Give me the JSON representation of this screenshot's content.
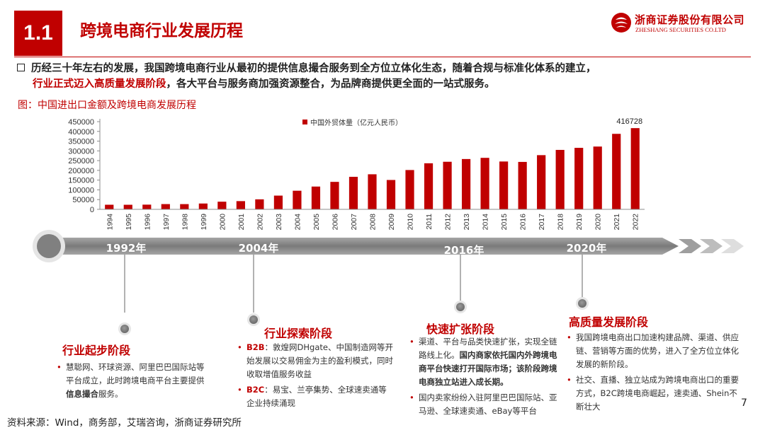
{
  "header": {
    "section_number": "1.1",
    "title": "跨境电商行业发展历程",
    "logo_cn": "浙商证券股份有限公司",
    "logo_en": "ZHESHANG SECURITIES CO.LTD"
  },
  "summary": {
    "line1": "历经三十年左右的发展，我国跨境电商行业从最初的提供信息撮合服务到全方位立体化生态，随着合规与标准化体系的建立，",
    "line2_highlight": "行业正式迈入高质量发展阶段",
    "line2_rest": "，各大平台与服务商加强资源整合，为品牌商提供更全面的一站式服务。"
  },
  "figure_caption": "图：中国进出口金额及跨境电商发展历程",
  "chart_data": {
    "type": "bar",
    "title": "",
    "series_name": "中国外贸体量（亿元人民币）",
    "categories": [
      "1994",
      "1995",
      "1996",
      "1997",
      "1998",
      "1999",
      "2000",
      "2001",
      "2002",
      "2003",
      "2004",
      "2005",
      "2006",
      "2007",
      "2008",
      "2009",
      "2010",
      "2011",
      "2012",
      "2013",
      "2014",
      "2015",
      "2016",
      "2017",
      "2018",
      "2019",
      "2020",
      "2021",
      "2022"
    ],
    "values": [
      23622,
      23500,
      24134,
      26967,
      26850,
      29896,
      39273,
      42184,
      51378,
      70484,
      95539,
      116922,
      140975,
      166924,
      179921,
      150648,
      201722,
      236402,
      244160,
      258169,
      264242,
      245503,
      243386,
      278099,
      305008,
      315627,
      322215,
      387392,
      416728
    ],
    "data_labels": [
      {
        "category": "2022",
        "text": "416728"
      }
    ],
    "yticks": [
      "0",
      "50000",
      "100000",
      "150000",
      "200000",
      "250000",
      "300000",
      "350000",
      "400000",
      "450000"
    ],
    "ylim": [
      0,
      450000
    ],
    "grid": false,
    "legend": "top-center",
    "bar_color": "#c00000"
  },
  "timeline": {
    "milestones": [
      "1992年",
      "2004年",
      "2016年",
      "2020年"
    ]
  },
  "stages": [
    {
      "title": "行业起步阶段",
      "items": [
        [
          {
            "t": "慧聪网、环球资源、阿里巴巴国际站等平台成立，此时跨境电商平台主要提供"
          },
          {
            "t": "信息撮合",
            "s": "strong"
          },
          {
            "t": "服务。"
          }
        ]
      ]
    },
    {
      "title": "行业探索阶段",
      "items": [
        [
          {
            "t": "B2B",
            "s": "strong-red"
          },
          {
            "t": "：敦煌网DHgate、中国制造网等开始发展以交易佣金为主的盈利模式，同时收取增值服务收益"
          }
        ],
        [
          {
            "t": "B2C",
            "s": "strong-red"
          },
          {
            "t": "：易宝、兰亭集势、全球速卖通等企业持续涌现"
          }
        ]
      ]
    },
    {
      "title": "快速扩张阶段",
      "items": [
        [
          {
            "t": "渠道、平台与品类快速扩张，实现全链路线上化。"
          },
          {
            "t": "国内商家依托国内外跨境电商平台快速打开国际市场；该阶段跨境电商独立站进入成长期。",
            "s": "strong"
          }
        ],
        [
          {
            "t": "国内卖家纷纷入驻阿里巴巴国际站、亚马逊、全球速卖通、eBay等平台"
          }
        ]
      ]
    },
    {
      "title": "高质量发展阶段",
      "items": [
        [
          {
            "t": "我国跨境电商出口加速构建品牌、渠道、供应链、营销等方面的优势，进入了全方位立体化发展的新阶段。"
          }
        ],
        [
          {
            "t": "社交、直播、独立站成为跨境电商出口的重要方式，B2C跨境电商崛起，速卖通、Shein不断壮大"
          }
        ]
      ]
    }
  ],
  "footer": {
    "source": "资料来源：Wind，商务部，艾瑞咨询，浙商证券研究所",
    "page_number": "7"
  },
  "colors": {
    "accent": "#c00000",
    "timeline_bar": "#808080",
    "timeline_dot": "#7f7f7f"
  }
}
